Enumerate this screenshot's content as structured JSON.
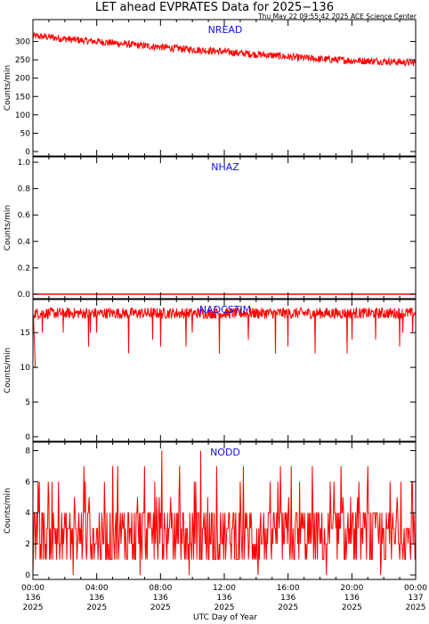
{
  "title": "LET ahead EVPRATES Data for 2025−136",
  "timestamp": "Thu May 22 09:55:42 2025 ACE Science Center",
  "xlabel": "UTC Day of Year",
  "colors": {
    "data": "#ff0000",
    "axes": "#000000",
    "panel_label": "#1010e0"
  },
  "x_ticks": [
    {
      "time": "00:00",
      "day": "136",
      "year": "2025"
    },
    {
      "time": "04:00",
      "day": "136",
      "year": "2025"
    },
    {
      "time": "08:00",
      "day": "136",
      "year": "2025"
    },
    {
      "time": "12:00",
      "day": "136",
      "year": "2025"
    },
    {
      "time": "16:00",
      "day": "136",
      "year": "2025"
    },
    {
      "time": "20:00",
      "day": "136",
      "year": "2025"
    },
    {
      "time": "00:00",
      "day": "137",
      "year": "2025"
    }
  ],
  "chart_data": [
    {
      "type": "line",
      "panel": "NREAD",
      "ylabel": "Counts/min",
      "ylim": [
        0,
        345
      ],
      "yticks": [
        0,
        50,
        100,
        150,
        200,
        250,
        300
      ],
      "xlim_hours": [
        0,
        24
      ],
      "x": [
        0,
        1,
        2,
        3,
        4,
        5,
        6,
        7,
        8,
        9,
        10,
        11,
        12,
        13,
        14,
        15,
        16,
        17,
        18,
        19,
        20,
        21,
        22,
        23,
        24
      ],
      "values": [
        315,
        312,
        307,
        303,
        300,
        296,
        292,
        288,
        285,
        281,
        278,
        275,
        272,
        268,
        265,
        262,
        258,
        255,
        252,
        250,
        248,
        247,
        246,
        244,
        242
      ],
      "noise_amplitude": 10
    },
    {
      "type": "line",
      "panel": "NHAZ",
      "ylabel": "Counts/min",
      "ylim": [
        0,
        1
      ],
      "yticks": [
        0.0,
        0.2,
        0.4,
        0.6,
        0.8,
        1.0
      ],
      "xlim_hours": [
        0,
        24
      ],
      "x": [
        0,
        24
      ],
      "values": [
        0,
        0
      ]
    },
    {
      "type": "line",
      "panel": "NADCSTIM",
      "ylabel": "Counts/min",
      "ylim": [
        0,
        19
      ],
      "yticks": [
        0,
        5,
        10,
        15
      ],
      "xlim_hours": [
        0,
        24
      ],
      "baseline": 17.8,
      "start_dip": {
        "x": 0.15,
        "value": 10
      },
      "dips": [
        {
          "x": 0.6,
          "value": 15
        },
        {
          "x": 1.9,
          "value": 15
        },
        {
          "x": 3.5,
          "value": 13
        },
        {
          "x": 3.6,
          "value": 15
        },
        {
          "x": 4.0,
          "value": 15
        },
        {
          "x": 6.0,
          "value": 12
        },
        {
          "x": 7.5,
          "value": 14
        },
        {
          "x": 8.0,
          "value": 13
        },
        {
          "x": 9.6,
          "value": 13
        },
        {
          "x": 10.0,
          "value": 15
        },
        {
          "x": 11.7,
          "value": 12
        },
        {
          "x": 13.5,
          "value": 14
        },
        {
          "x": 15.2,
          "value": 12
        },
        {
          "x": 16.0,
          "value": 13
        },
        {
          "x": 17.7,
          "value": 12
        },
        {
          "x": 19.7,
          "value": 12
        },
        {
          "x": 20.0,
          "value": 14
        },
        {
          "x": 21.5,
          "value": 14
        },
        {
          "x": 23.0,
          "value": 13
        },
        {
          "x": 23.2,
          "value": 15
        },
        {
          "x": 23.8,
          "value": 15
        }
      ],
      "noise_amplitude": 0.8
    },
    {
      "type": "line",
      "panel": "NODD",
      "ylabel": "Counts/min",
      "ylim": [
        0,
        8.2
      ],
      "yticks": [
        0,
        2,
        4,
        6,
        8
      ],
      "xlim_hours": [
        0,
        24
      ],
      "typical_range": [
        1,
        4
      ],
      "peaks": [
        {
          "x": 0.4,
          "value": 6
        },
        {
          "x": 1.2,
          "value": 6
        },
        {
          "x": 3.2,
          "value": 7
        },
        {
          "x": 5.0,
          "value": 7
        },
        {
          "x": 5.3,
          "value": 7
        },
        {
          "x": 7.0,
          "value": 7
        },
        {
          "x": 8.1,
          "value": 8
        },
        {
          "x": 9.2,
          "value": 7
        },
        {
          "x": 10.5,
          "value": 8
        },
        {
          "x": 11.5,
          "value": 7
        },
        {
          "x": 13.2,
          "value": 7
        },
        {
          "x": 15.5,
          "value": 7
        },
        {
          "x": 16.2,
          "value": 7
        },
        {
          "x": 17.5,
          "value": 7
        },
        {
          "x": 19.3,
          "value": 7
        },
        {
          "x": 21.0,
          "value": 7
        },
        {
          "x": 22.4,
          "value": 6
        },
        {
          "x": 23.8,
          "value": 6
        }
      ],
      "zero_dips": [
        0.0,
        2.5,
        6.7,
        9.8,
        14.1,
        18.4,
        21.8
      ]
    }
  ]
}
